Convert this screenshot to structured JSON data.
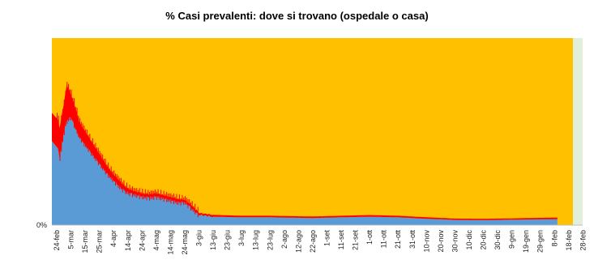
{
  "chart_data": {
    "type": "area",
    "title": "% Casi prevalenti: dove si trovano (ospedale o casa)",
    "stacked": true,
    "percent_stacked": true,
    "y_tick_label": "0%",
    "x_tick_labels": [
      "24-feb",
      "5-mar",
      "15-mar",
      "25-mar",
      "4-apr",
      "14-apr",
      "24-apr",
      "4-mag",
      "14-mag",
      "24-mag",
      "3-giu",
      "13-giu",
      "23-giu",
      "3-lug",
      "13-lug",
      "23-lug",
      "2-ago",
      "12-ago",
      "22-ago",
      "1-set",
      "11-set",
      "21-set",
      "1-ott",
      "11-ott",
      "21-ott",
      "31-ott",
      "10-nov",
      "20-nov",
      "30-nov",
      "10-dic",
      "20-dic",
      "30-dic",
      "9-gen",
      "19-gen",
      "29-gen",
      "8-feb",
      "18-feb",
      "28-feb"
    ],
    "hospital_share_pct": [
      {
        "day": 0,
        "lo": 45,
        "hi": 60
      },
      {
        "day": 2,
        "lo": 36,
        "hi": 52
      },
      {
        "day": 5,
        "lo": 50,
        "hi": 65
      },
      {
        "day": 7,
        "lo": 56,
        "hi": 75
      },
      {
        "day": 10,
        "lo": 58,
        "hi": 70
      },
      {
        "day": 13,
        "lo": 52,
        "hi": 63
      },
      {
        "day": 16,
        "lo": 47,
        "hi": 55
      },
      {
        "day": 20,
        "lo": 43,
        "hi": 50
      },
      {
        "day": 25,
        "lo": 38,
        "hi": 44
      },
      {
        "day": 30,
        "lo": 33,
        "hi": 38
      },
      {
        "day": 35,
        "lo": 28,
        "hi": 32
      },
      {
        "day": 40,
        "lo": 24,
        "hi": 27
      },
      {
        "day": 45,
        "lo": 20,
        "hi": 23
      },
      {
        "day": 50,
        "lo": 17.5,
        "hi": 19.5
      },
      {
        "day": 55,
        "lo": 16.5,
        "hi": 18
      },
      {
        "day": 60,
        "lo": 15.5,
        "hi": 17
      },
      {
        "day": 65,
        "lo": 15,
        "hi": 16.5
      },
      {
        "day": 70,
        "lo": 15.5,
        "hi": 17
      },
      {
        "day": 75,
        "lo": 14.5,
        "hi": 16
      },
      {
        "day": 80,
        "lo": 13.5,
        "hi": 15
      },
      {
        "day": 85,
        "lo": 12.5,
        "hi": 14
      },
      {
        "day": 90,
        "lo": 12.5,
        "hi": 13.5
      },
      {
        "day": 95,
        "lo": 9,
        "hi": 10.5
      },
      {
        "day": 100,
        "lo": 5.5,
        "hi": 6.5
      },
      {
        "day": 110,
        "lo": 4.5,
        "hi": 5.5
      },
      {
        "day": 130,
        "lo": 4.2,
        "hi": 5
      },
      {
        "day": 150,
        "lo": 4.2,
        "hi": 5
      },
      {
        "day": 180,
        "lo": 3.8,
        "hi": 4.6
      },
      {
        "day": 200,
        "lo": 4.2,
        "hi": 5
      },
      {
        "day": 220,
        "lo": 4.5,
        "hi": 5.4
      },
      {
        "day": 240,
        "lo": 4.2,
        "hi": 5
      },
      {
        "day": 260,
        "lo": 3.4,
        "hi": 4.2
      },
      {
        "day": 280,
        "lo": 2.8,
        "hi": 3.5
      },
      {
        "day": 300,
        "lo": 2.7,
        "hi": 3.4
      },
      {
        "day": 320,
        "lo": 2.9,
        "hi": 3.6
      },
      {
        "day": 340,
        "lo": 3.1,
        "hi": 3.9
      },
      {
        "day": 352,
        "lo": 3.2,
        "hi": 4
      }
    ],
    "last_day": 352,
    "colors": {
      "home": "#ffc000",
      "hospital": "#5b9bd5",
      "hospital_band": "#ff0000",
      "future": "#e2efda"
    }
  }
}
